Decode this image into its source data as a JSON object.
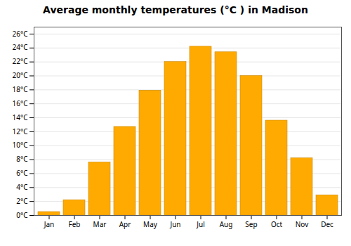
{
  "chart_data": {
    "type": "bar",
    "title": "Average monthly temperatures (°C ) in Madison",
    "categories": [
      "Jan",
      "Feb",
      "Mar",
      "Apr",
      "May",
      "Jun",
      "Jul",
      "Aug",
      "Sep",
      "Oct",
      "Nov",
      "Dec"
    ],
    "values": [
      0.5,
      2.2,
      7.6,
      12.7,
      17.9,
      22.0,
      24.2,
      23.4,
      20.0,
      13.6,
      8.2,
      2.9
    ],
    "color": "#FFAA00",
    "ylim": [
      0,
      27
    ],
    "yticks": [
      {
        "value": 0,
        "label": "0°C"
      },
      {
        "value": 2,
        "label": "2°C"
      },
      {
        "value": 4,
        "label": "4°C"
      },
      {
        "value": 6,
        "label": "6°C"
      },
      {
        "value": 8,
        "label": "8°C"
      },
      {
        "value": 10,
        "label": "10°C"
      },
      {
        "value": 12,
        "label": "12°C"
      },
      {
        "value": 14,
        "label": "14°C"
      },
      {
        "value": 16,
        "label": "16°C"
      },
      {
        "value": 18,
        "label": "18°C"
      },
      {
        "value": 20,
        "label": "20°C"
      },
      {
        "value": 22,
        "label": "22°C"
      },
      {
        "value": 24,
        "label": "24°C"
      },
      {
        "value": 26,
        "label": "26°C"
      }
    ],
    "grid": true
  }
}
